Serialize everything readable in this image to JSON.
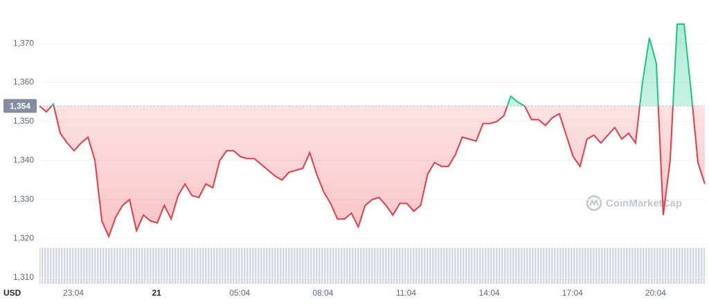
{
  "chart_data": {
    "type": "line",
    "values": [
      1354,
      1352.5,
      1354.5,
      1347,
      1344.5,
      1342.5,
      1344.5,
      1346,
      1340,
      1324.5,
      1320.5,
      1325.5,
      1328.5,
      1330,
      1322,
      1326,
      1324.5,
      1324,
      1328.5,
      1325,
      1331,
      1334,
      1331,
      1330.5,
      1334,
      1333,
      1340,
      1342.5,
      1342.5,
      1341,
      1340.5,
      1340.5,
      1339,
      1337.5,
      1336,
      1335,
      1337,
      1337.5,
      1338,
      1342,
      1336.5,
      1332,
      1329,
      1325,
      1325,
      1326.5,
      1323,
      1328.5,
      1330,
      1330.5,
      1328.5,
      1326,
      1329,
      1329,
      1327,
      1328.5,
      1336.5,
      1339.5,
      1338.5,
      1338.5,
      1341.5,
      1346,
      1345.5,
      1345,
      1349.5,
      1349.5,
      1350,
      1351.5,
      1356.5,
      1355,
      1354,
      1350.5,
      1350.5,
      1349,
      1351,
      1352,
      1346.5,
      1341,
      1338.5,
      1345.5,
      1346.5,
      1344.5,
      1346.5,
      1348.5,
      1345.5,
      1347,
      1344.5,
      1360,
      1371.5,
      1365,
      1326,
      1340,
      1375,
      1375,
      1358,
      1339.5,
      1334
    ],
    "xlim": [
      0,
      96
    ],
    "xticks": [
      {
        "value": 4.9,
        "label": "23:04"
      },
      {
        "value": 16.9,
        "label": "21"
      },
      {
        "value": 28.9,
        "label": "05:04"
      },
      {
        "value": 40.9,
        "label": "08:04"
      },
      {
        "value": 52.9,
        "label": "11:04"
      },
      {
        "value": 64.9,
        "label": "14:04"
      },
      {
        "value": 76.9,
        "label": "17:04"
      },
      {
        "value": 88.9,
        "label": "20:04"
      }
    ],
    "ylim": [
      1308,
      1378
    ],
    "yticks": [
      {
        "value": 1310,
        "label": "1,310"
      },
      {
        "value": 1320,
        "label": "1,320"
      },
      {
        "value": 1330,
        "label": "1,330"
      },
      {
        "value": 1340,
        "label": "1,340"
      },
      {
        "value": 1350,
        "label": "1,350"
      },
      {
        "value": 1360,
        "label": "1,360"
      },
      {
        "value": 1370,
        "label": "1,370"
      }
    ],
    "reference": {
      "value": 1354,
      "label": "1,354"
    },
    "up_color": "#16c784",
    "down_color": "#ea3943",
    "grid": true,
    "currency": "USD",
    "watermark": "CoinMarketCap"
  }
}
